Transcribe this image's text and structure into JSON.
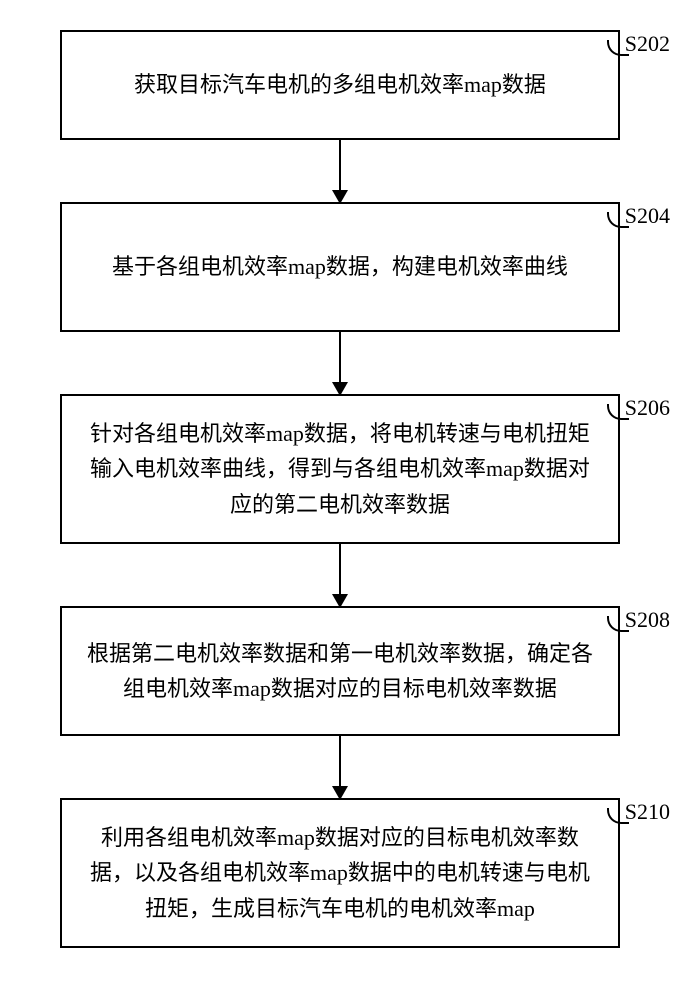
{
  "diagram": {
    "type": "flowchart",
    "layout": "vertical",
    "background_color": "#ffffff",
    "box_border_color": "#000000",
    "box_border_width": 2,
    "arrow_color": "#000000",
    "font_family": "SimSun",
    "font_size_pt": 16,
    "label_font_family": "Times New Roman",
    "steps": [
      {
        "id": "S202",
        "text": "获取目标汽车电机的多组电机效率map数据",
        "height_class": "h1"
      },
      {
        "id": "S204",
        "text": "基于各组电机效率map数据，构建电机效率曲线",
        "height_class": "h2"
      },
      {
        "id": "S206",
        "text": "针对各组电机效率map数据，将电机转速与电机扭矩输入电机效率曲线，得到与各组电机效率map数据对应的第二电机效率数据",
        "height_class": "h3"
      },
      {
        "id": "S208",
        "text": "根据第二电机效率数据和第一电机效率数据，确定各组电机效率map数据对应的目标电机效率数据",
        "height_class": "h2"
      },
      {
        "id": "S210",
        "text": "利用各组电机效率map数据对应的目标电机效率数据，以及各组电机效率map数据中的电机转速与电机扭矩，生成目标汽车电机的电机效率map",
        "height_class": "h3"
      }
    ],
    "edges": [
      {
        "from": "S202",
        "to": "S204"
      },
      {
        "from": "S204",
        "to": "S206"
      },
      {
        "from": "S206",
        "to": "S208"
      },
      {
        "from": "S208",
        "to": "S210"
      }
    ]
  }
}
